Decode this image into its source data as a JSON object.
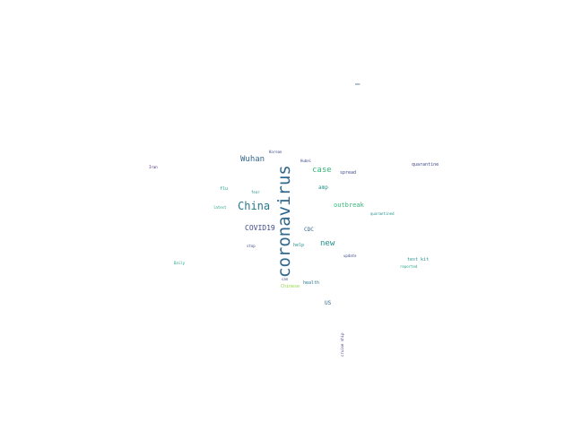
{
  "words": [
    {
      "text": "coronavirus",
      "color": "#31688e"
    },
    {
      "text": "China",
      "color": "#2a788e"
    },
    {
      "text": "Wuhan",
      "color": "#31688e"
    },
    {
      "text": "case",
      "color": "#35b779"
    },
    {
      "text": "new",
      "color": "#21918c"
    },
    {
      "text": "COVID19",
      "color": "#3e4a89"
    },
    {
      "text": "outbreak",
      "color": "#35b779"
    },
    {
      "text": "amp",
      "color": "#21918c"
    },
    {
      "text": "CDC",
      "color": "#31688e"
    },
    {
      "text": "spread",
      "color": "#3e4a89"
    },
    {
      "text": "quarantine",
      "color": "#3e4a89"
    },
    {
      "text": "flu",
      "color": "#20a386"
    },
    {
      "text": "help",
      "color": "#21918c"
    },
    {
      "text": "health",
      "color": "#2a788e"
    },
    {
      "text": "US",
      "color": "#31688e"
    },
    {
      "text": "Chinese",
      "color": "#90d743"
    },
    {
      "text": "test kit",
      "color": "#21918c"
    },
    {
      "text": "update",
      "color": "#3e4a89"
    },
    {
      "text": "reported",
      "color": "#20a386"
    },
    {
      "text": "quarantined",
      "color": "#21918c"
    },
    {
      "text": "Hubei",
      "color": "#3e4a89"
    },
    {
      "text": "Korean",
      "color": "#3e4a89"
    },
    {
      "text": "fear",
      "color": "#21918c"
    },
    {
      "text": "stop",
      "color": "#3e4a89"
    },
    {
      "text": "can",
      "color": "#3e4a89"
    },
    {
      "text": "latest",
      "color": "#20a386"
    },
    {
      "text": "Daily",
      "color": "#20a386"
    },
    {
      "text": "Iran",
      "color": "#482878"
    },
    {
      "text": "outbreak",
      "color": "#31688e"
    },
    {
      "text": "WHO",
      "color": "#31688e"
    },
    {
      "text": "cruise ship",
      "color": "#443983"
    }
  ]
}
